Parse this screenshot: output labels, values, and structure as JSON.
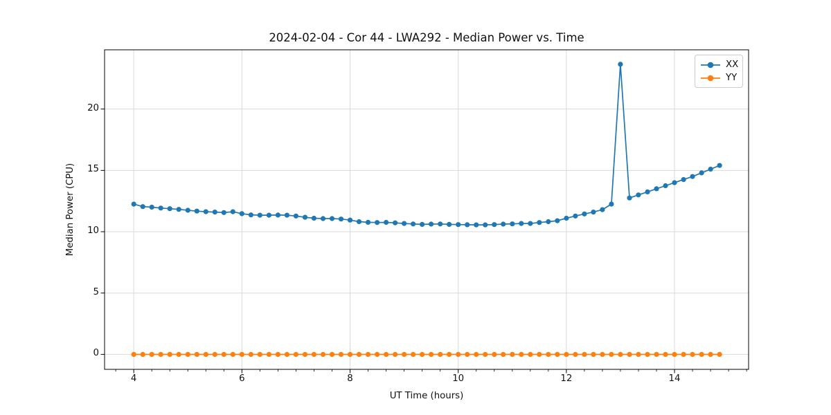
{
  "figure": {
    "title": "2024-02-04 - Cor 44 - LWA292 - Median Power vs. Time",
    "xlabel": "UT Time (hours)",
    "ylabel": "Median Power (CPU)"
  },
  "chart_data": {
    "type": "line",
    "title": "2024-02-04 - Cor 44 - LWA292 - Median Power vs. Time",
    "xlabel": "UT Time (hours)",
    "ylabel": "Median Power (CPU)",
    "xlim": [
      3.46,
      15.37
    ],
    "ylim": [
      -1.22,
      24.83
    ],
    "x_ticks": [
      4,
      6,
      8,
      10,
      12,
      14
    ],
    "y_ticks": [
      0,
      5,
      10,
      15,
      20
    ],
    "x_minor_tick_step": 0.3333,
    "grid": true,
    "grid_color": "#d9d9d9",
    "legend_position": "upper right",
    "x": [
      4.0,
      4.167,
      4.333,
      4.5,
      4.667,
      4.833,
      5.0,
      5.167,
      5.333,
      5.5,
      5.667,
      5.833,
      6.0,
      6.167,
      6.333,
      6.5,
      6.667,
      6.833,
      7.0,
      7.167,
      7.333,
      7.5,
      7.667,
      7.833,
      8.0,
      8.167,
      8.333,
      8.5,
      8.667,
      8.833,
      9.0,
      9.167,
      9.333,
      9.5,
      9.667,
      9.833,
      10.0,
      10.167,
      10.333,
      10.5,
      10.667,
      10.833,
      11.0,
      11.167,
      11.333,
      11.5,
      11.667,
      11.833,
      12.0,
      12.167,
      12.333,
      12.5,
      12.667,
      12.833,
      13.0,
      13.167,
      13.333,
      13.5,
      13.667,
      13.833,
      14.0,
      14.167,
      14.333,
      14.5,
      14.667,
      14.833
    ],
    "series": [
      {
        "name": "XX",
        "color": "#1f77b4",
        "marker": "circle",
        "values": [
          12.25,
          12.05,
          12.0,
          11.93,
          11.88,
          11.82,
          11.75,
          11.68,
          11.63,
          11.6,
          11.56,
          11.63,
          11.47,
          11.37,
          11.35,
          11.35,
          11.36,
          11.35,
          11.28,
          11.18,
          11.1,
          11.07,
          11.07,
          11.03,
          10.95,
          10.82,
          10.77,
          10.75,
          10.76,
          10.72,
          10.67,
          10.63,
          10.6,
          10.62,
          10.63,
          10.6,
          10.58,
          10.57,
          10.56,
          10.56,
          10.58,
          10.62,
          10.64,
          10.67,
          10.67,
          10.75,
          10.82,
          10.9,
          11.1,
          11.28,
          11.45,
          11.6,
          11.8,
          12.25,
          23.65,
          12.75,
          13.0,
          13.25,
          13.5,
          13.75,
          14.0,
          14.25,
          14.5,
          14.8,
          15.1,
          15.4
        ]
      },
      {
        "name": "YY",
        "color": "#ff7f0e",
        "marker": "circle",
        "values": [
          0,
          0,
          0,
          0,
          0,
          0,
          0,
          0,
          0,
          0,
          0,
          0,
          0,
          0,
          0,
          0,
          0,
          0,
          0,
          0,
          0,
          0,
          0,
          0,
          0,
          0,
          0,
          0,
          0,
          0,
          0,
          0,
          0,
          0,
          0,
          0,
          0,
          0,
          0,
          0,
          0,
          0,
          0,
          0,
          0,
          0,
          0,
          0,
          0,
          0,
          0,
          0,
          0,
          0,
          0,
          0,
          0,
          0,
          0,
          0,
          0,
          0,
          0,
          0,
          0,
          0
        ]
      }
    ]
  }
}
